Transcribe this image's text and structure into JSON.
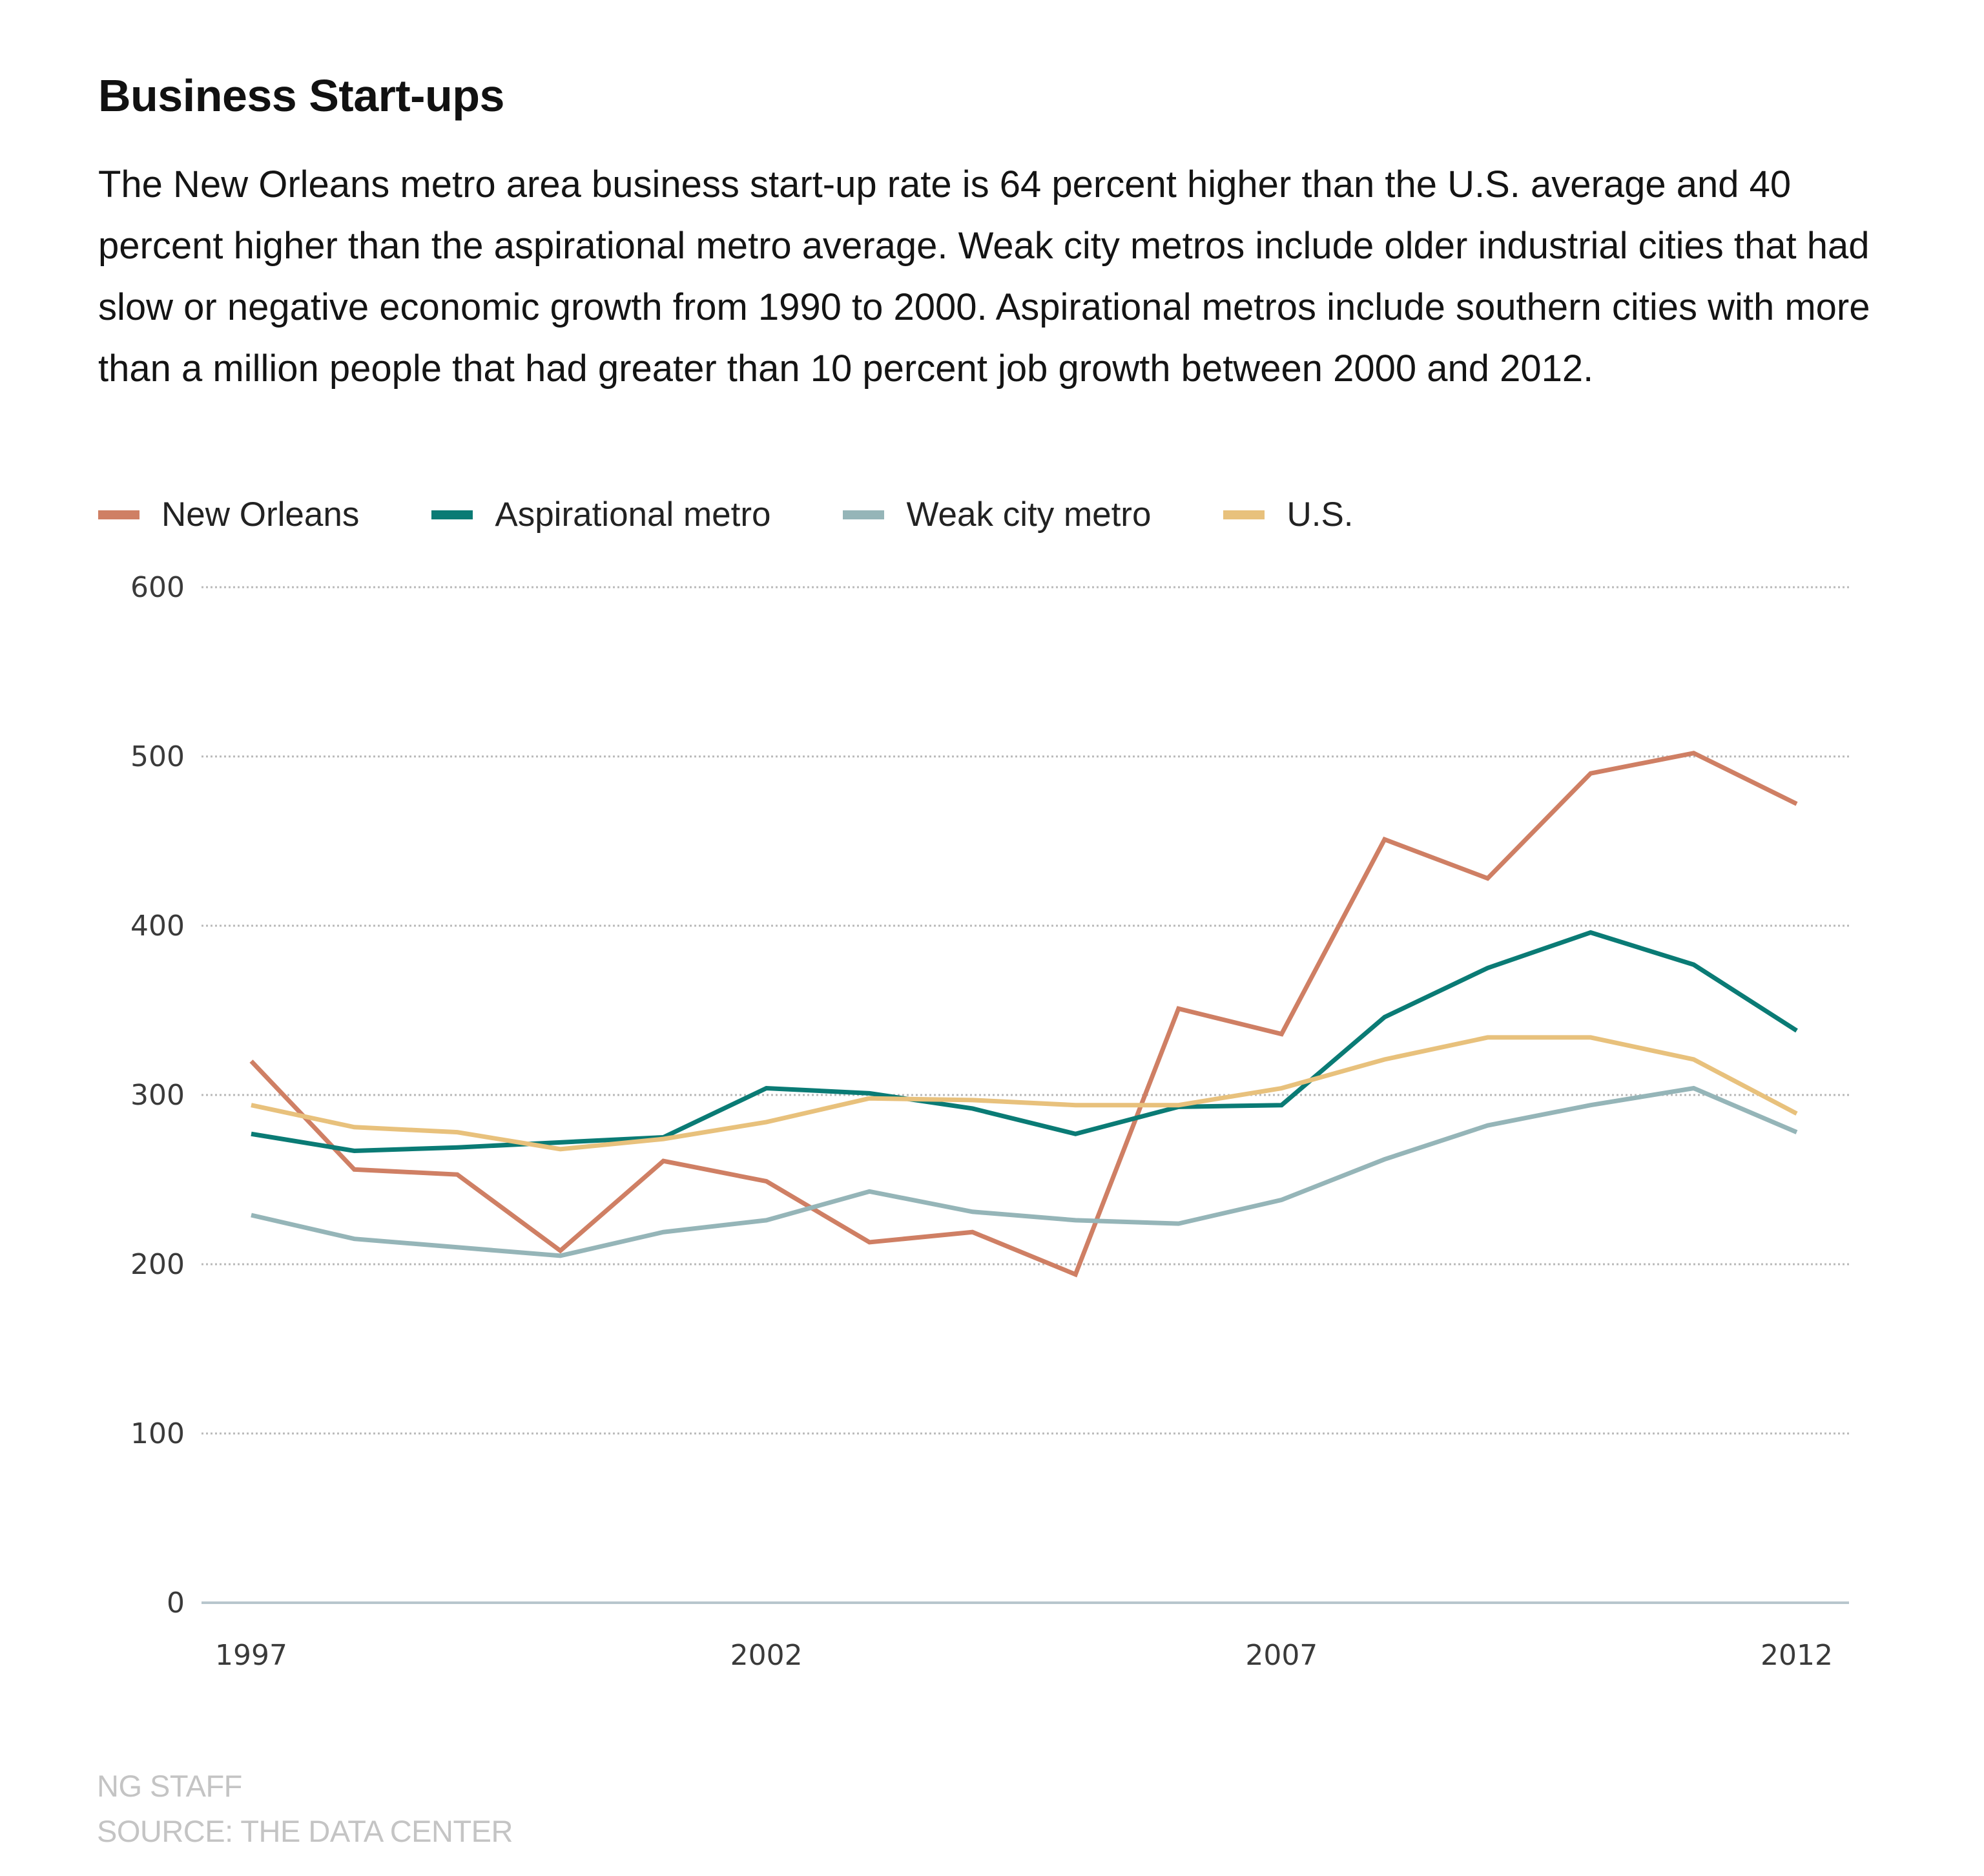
{
  "header": {
    "title": "Business Start-ups",
    "description": "The New Orleans metro area business start-up rate is 64 percent higher than the U.S. average and 40 percent higher than the aspirational metro average. Weak city metros include older industrial cities that had slow or negative economic growth from 1990 to 2000. Aspirational metros include southern cities with more than a million people that had greater than 10 percent job growth between 2000 and 2012."
  },
  "footer": {
    "credit": "NG STAFF",
    "source": "SOURCE: THE DATA CENTER"
  },
  "chart_data": {
    "type": "line",
    "title": "Business Start-ups",
    "xlabel": "",
    "ylabel": "",
    "x": [
      1997,
      1998,
      1999,
      2000,
      2001,
      2002,
      2003,
      2004,
      2005,
      2006,
      2007,
      2008,
      2009,
      2010,
      2011,
      2012
    ],
    "x_ticks": [
      "1997",
      "2002",
      "2007",
      "2012"
    ],
    "y_ticks": [
      "0",
      "100",
      "200",
      "300",
      "400",
      "500",
      "600"
    ],
    "ylim": [
      0,
      600
    ],
    "grid": true,
    "legend_position": "top-left",
    "series": [
      {
        "name": "New Orleans",
        "color": "#cf7f64",
        "values": [
          320,
          256,
          253,
          208,
          261,
          249,
          213,
          219,
          194,
          351,
          336,
          451,
          428,
          490,
          502,
          472
        ]
      },
      {
        "name": "Aspirational metro",
        "color": "#0a7b75",
        "values": [
          277,
          267,
          269,
          272,
          275,
          304,
          301,
          292,
          277,
          293,
          294,
          346,
          375,
          396,
          377,
          338
        ]
      },
      {
        "name": "Weak city metro",
        "color": "#95b5b8",
        "values": [
          229,
          215,
          210,
          205,
          219,
          226,
          243,
          231,
          226,
          224,
          238,
          262,
          282,
          294,
          304,
          278
        ]
      },
      {
        "name": "U.S.",
        "color": "#e8c17c",
        "values": [
          294,
          281,
          278,
          268,
          274,
          284,
          298,
          297,
          294,
          294,
          304,
          321,
          334,
          334,
          321,
          289
        ]
      }
    ]
  }
}
